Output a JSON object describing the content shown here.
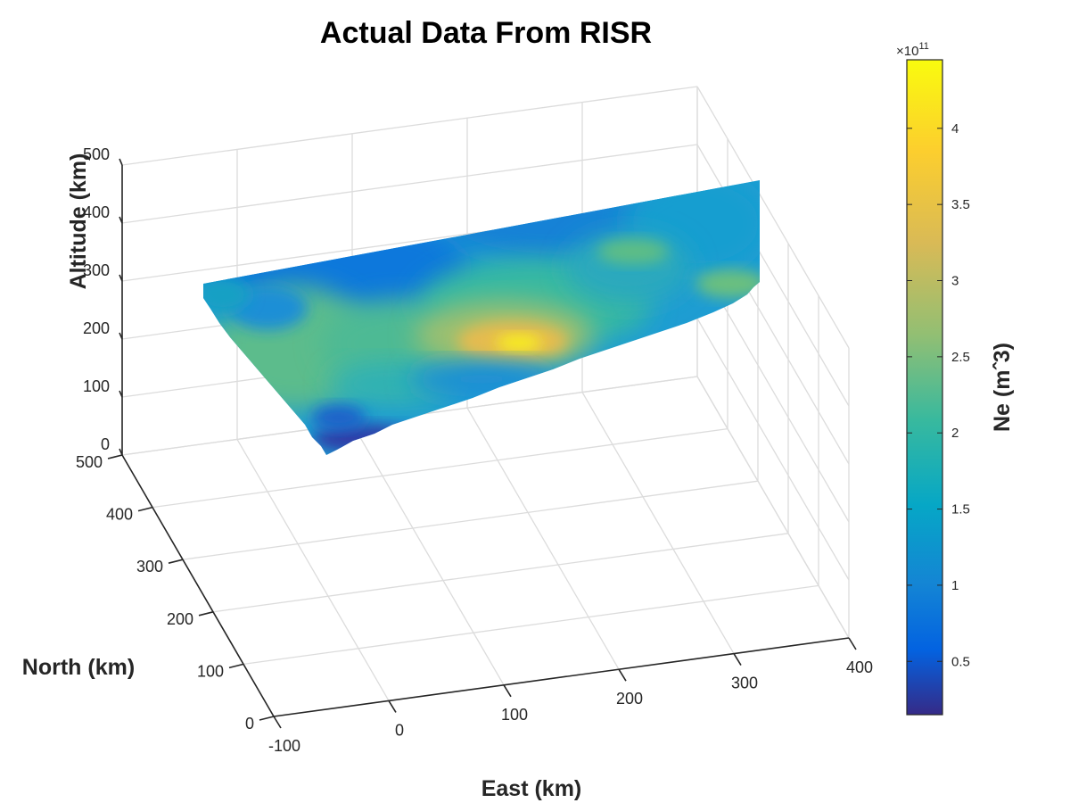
{
  "chart_data": {
    "type": "surface3d",
    "title": "Actual Data From RISR",
    "xlabel": "East (km)",
    "ylabel": "North (km)",
    "zlabel": "Altitude (km)",
    "xlim": [
      -100,
      400
    ],
    "ylim": [
      0,
      500
    ],
    "zlim": [
      0,
      500
    ],
    "x_ticks": [
      "-100",
      "0",
      "100",
      "200",
      "300",
      "400"
    ],
    "y_ticks": [
      "0",
      "100",
      "200",
      "300",
      "400",
      "500"
    ],
    "z_ticks": [
      "0",
      "100",
      "200",
      "300",
      "400",
      "500"
    ],
    "grid": true,
    "colormap": "parula",
    "colorbar": {
      "label": "Ne (m^-3)",
      "label_display": "Ne (mˆ3)",
      "exponent_label": "×10",
      "exponent": "11",
      "range": [
        0.15,
        4.45
      ],
      "ticks": [
        "0.5",
        "1",
        "1.5",
        "2",
        "2.5",
        "3",
        "3.5",
        "4"
      ]
    },
    "surface": {
      "description_plane": "vertical slice at North ≈ 500 km",
      "east_range": [
        -60,
        330
      ],
      "altitude_bottom_range": [
        140,
        390
      ],
      "altitude_top": [
        330,
        440
      ],
      "ne_peak": {
        "value": 4.4,
        "east": 140,
        "altitude": 270
      },
      "ne_low": {
        "value": 0.2,
        "east": -20,
        "altitude": 160
      }
    }
  }
}
